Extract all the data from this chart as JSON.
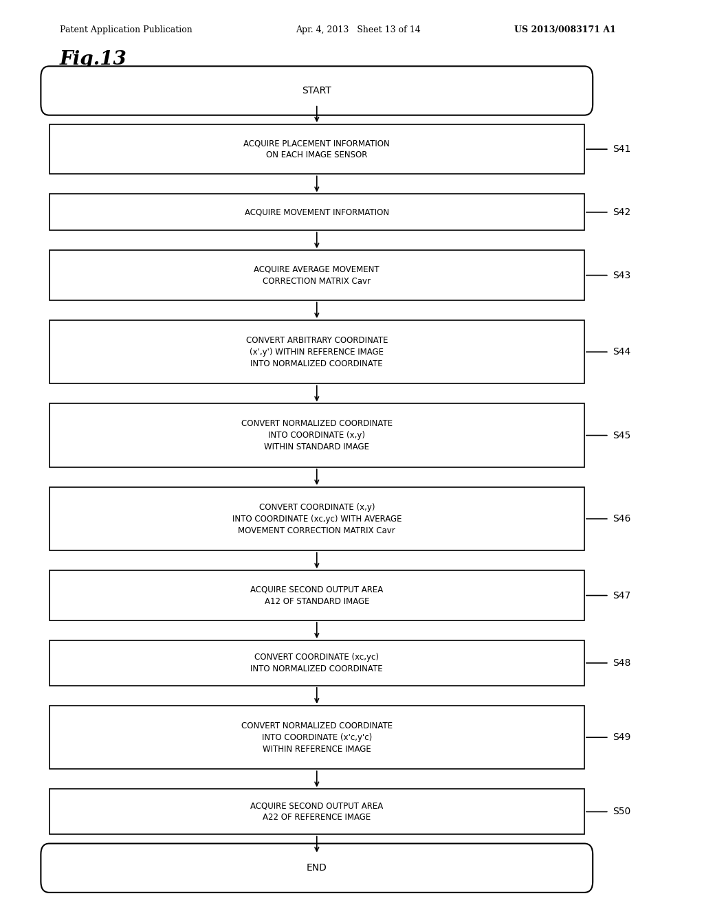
{
  "header_left": "Patent Application Publication",
  "header_center": "Apr. 4, 2013   Sheet 13 of 14",
  "header_right": "US 2013/0083171 A1",
  "fig_label": "Fig.13",
  "background_color": "#ffffff",
  "steps": [
    {
      "label": "START",
      "type": "rounded",
      "step_id": "S41_start"
    },
    {
      "label": "ACQUIRE PLACEMENT INFORMATION\nON EACH IMAGE SENSOR",
      "type": "rect",
      "step_id": "S41"
    },
    {
      "label": "ACQUIRE MOVEMENT INFORMATION",
      "type": "rect",
      "step_id": "S42"
    },
    {
      "label": "ACQUIRE AVERAGE MOVEMENT\nCORRECTION MATRIX Cᴀᴠʀ",
      "type": "rect",
      "step_id": "S43"
    },
    {
      "label": "CONVERT ARBITRARY COORDINATE\n(x',y') WITHIN REFERENCE IMAGE\nINTO NORMALIZED COORDINATE",
      "type": "rect",
      "step_id": "S44"
    },
    {
      "label": "CONVERT NORMALIZED COORDINATE\nINTO COORDINATE (x,y)\nWITHIN STANDARD IMAGE",
      "type": "rect",
      "step_id": "S45"
    },
    {
      "label": "CONVERT COORDINATE (x,y)\nINTO COORDINATE (xc,yc) WITH AVERAGE\nMOVEMENT CORRECTION MATRIX Cᴀᴠʀ",
      "type": "rect",
      "step_id": "S46"
    },
    {
      "label": "ACQUIRE SECOND OUTPUT AREA\nA12 OF STANDARD IMAGE",
      "type": "rect",
      "step_id": "S47"
    },
    {
      "label": "CONVERT COORDINATE (xc,yc)\nINTO NORMALIZED COORDINATE",
      "type": "rect",
      "step_id": "S48"
    },
    {
      "label": "CONVERT NORMALIZED COORDINATE\nINTO COORDINATE (x'c,y'c)\nWITHIN REFERENCE IMAGE",
      "type": "rect",
      "step_id": "S49"
    },
    {
      "label": "ACQUIRE SECOND OUTPUT AREA\nA22 OF REFERENCE IMAGE",
      "type": "rect",
      "step_id": "S50"
    },
    {
      "label": "END",
      "type": "rounded",
      "step_id": "S50_end"
    }
  ],
  "step_labels": [
    "",
    "S41",
    "S42",
    "S43",
    "S44",
    "S45",
    "S46",
    "S47",
    "S48",
    "S49",
    "S50",
    ""
  ],
  "box_width": 0.38,
  "box_color": "#ffffff",
  "box_edge_color": "#000000",
  "text_color": "#000000",
  "arrow_color": "#000000"
}
